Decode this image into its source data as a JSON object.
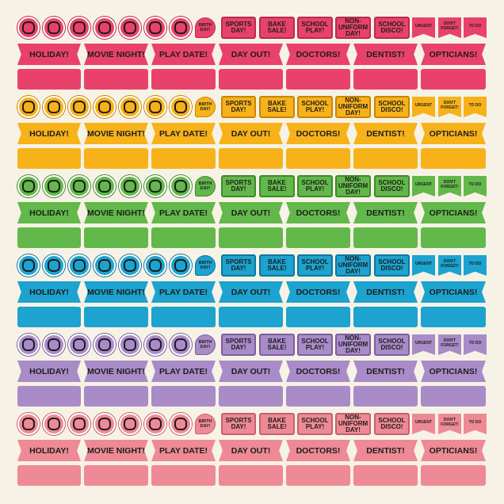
{
  "rows": [
    {
      "birthday": "BIRTH DAY!",
      "labels": [
        "SPORTS DAY!",
        "BAKE SALE!",
        "SCHOOL PLAY!",
        "NON-UNIFORM DAY!",
        "SCHOOL DISCO!"
      ],
      "flags": [
        "URGENT",
        "DON'T FORGET!",
        "TO DO"
      ],
      "banners": [
        "HOLIDAY!",
        "MOVIE NIGHT!",
        "PLAY DATE!",
        "DAY OUT!",
        "DOCTORS!",
        "DENTIST!",
        "OPTICIANS!"
      ]
    },
    {
      "birthday": "BIRTH DAY!",
      "labels": [
        "SPORTS DAY!",
        "BAKE SALE!",
        "SCHOOL PLAY!",
        "NON-UNIFORM DAY!",
        "SCHOOL DISCO!"
      ],
      "flags": [
        "URGENT",
        "DON'T FORGET!",
        "TO DO"
      ],
      "banners": [
        "HOLIDAY!",
        "MOVIE NIGHT!",
        "PLAY DATE!",
        "DAY OUT!",
        "DOCTORS!",
        "DENTIST!",
        "OPTICIANS!"
      ]
    },
    {
      "birthday": "BIRTH DAY!",
      "labels": [
        "SPORTS DAY!",
        "BAKE SALE!",
        "SCHOOL PLAY!",
        "NON-UNIFORM DAY!",
        "SCHOOL DISCO!"
      ],
      "flags": [
        "URGENT",
        "DON'T FORGET!",
        "TO DO"
      ],
      "banners": [
        "HOLIDAY!",
        "MOVIE NIGHT!",
        "PLAY DATE!",
        "DAY OUT!",
        "DOCTORS!",
        "DENTIST!",
        "OPTICIANS!"
      ]
    },
    {
      "birthday": "BIRTH DAY!",
      "labels": [
        "SPORTS DAY!",
        "BAKE SALE!",
        "SCHOOL PLAY!",
        "NON-UNIFORM DAY!",
        "SCHOOL DISCO!"
      ],
      "flags": [
        "URGENT",
        "DON'T FORGET!",
        "TO DO"
      ],
      "banners": [
        "HOLIDAY!",
        "MOVIE NIGHT!",
        "PLAY DATE!",
        "DAY OUT!",
        "DOCTORS!",
        "DENTIST!",
        "OPTICIANS!"
      ]
    },
    {
      "birthday": "BIRTH DAY!",
      "labels": [
        "SPORTS DAY!",
        "BAKE SALE!",
        "SCHOOL PLAY!",
        "NON-UNIFORM DAY!",
        "SCHOOL DISCO!"
      ],
      "flags": [
        "URGENT",
        "DON'T FORGET!",
        "TO DO"
      ],
      "banners": [
        "HOLIDAY!",
        "MOVIE NIGHT!",
        "PLAY DATE!",
        "DAY OUT!",
        "DOCTORS!",
        "DENTIST!",
        "OPTICIANS!"
      ]
    },
    {
      "birthday": "BIRTH DAY!",
      "labels": [
        "SPORTS DAY!",
        "BAKE SALE!",
        "SCHOOL PLAY!",
        "NON-UNIFORM DAY!",
        "SCHOOL DISCO!"
      ],
      "flags": [
        "URGENT",
        "DON'T FORGET!",
        "TO DO"
      ],
      "banners": [
        "HOLIDAY!",
        "MOVIE NIGHT!",
        "PLAY DATE!",
        "DAY OUT!",
        "DOCTORS!",
        "DENTIST!",
        "OPTICIANS!"
      ]
    }
  ]
}
